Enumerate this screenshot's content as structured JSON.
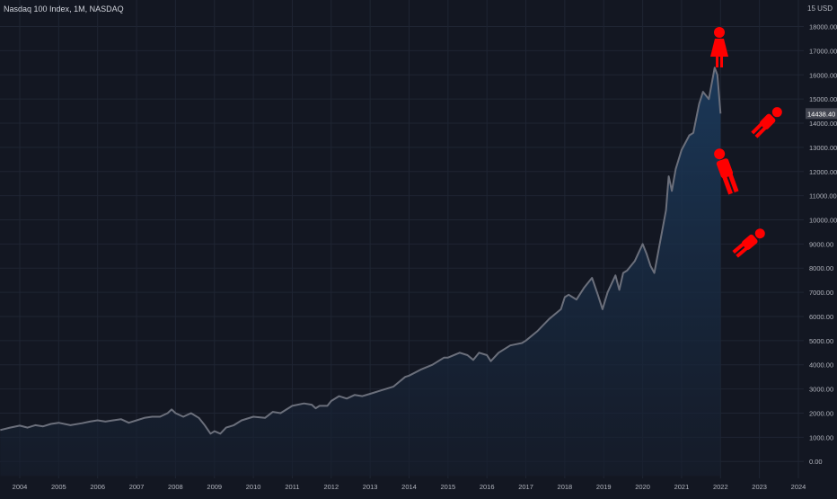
{
  "header": {
    "symbol": "Nasdaq 100 Index",
    "interval": "1M",
    "exchange": "NASDAQ",
    "currency": "USD",
    "top_tick_partial": "15"
  },
  "price_tag": "14438.40",
  "colors": {
    "background": "#131722",
    "grid": "#1f2533",
    "line": "#6b6f7b",
    "area_top": "#1b3a5c",
    "area_bottom": "#161e2d",
    "axis_text": "#b2b5be",
    "price_tag_bg": "#434651",
    "figures": "#ff0000"
  },
  "annotations": [
    {
      "icon": "woman-standing-icon"
    },
    {
      "icon": "man-standing-icon"
    },
    {
      "icon": "person-falling-icon"
    },
    {
      "icon": "person-falling-icon"
    }
  ],
  "chart_data": {
    "type": "area",
    "title": "Nasdaq 100 Index, 1M, NASDAQ",
    "x_tick_labels": [
      "2004",
      "2005",
      "2006",
      "2007",
      "2008",
      "2009",
      "2010",
      "2011",
      "2012",
      "2013",
      "2014",
      "2015",
      "2016",
      "2017",
      "2018",
      "2019",
      "2020",
      "2021",
      "2022",
      "2023",
      "2024"
    ],
    "y_tick_labels": [
      "0.00",
      "1000.00",
      "2000.00",
      "3000.00",
      "4000.00",
      "5000.00",
      "6000.00",
      "7000.00",
      "8000.00",
      "9000.00",
      "10000.00",
      "11000.00",
      "12000.00",
      "13000.00",
      "14000.00",
      "15000.00",
      "16000.00",
      "17000.00",
      "18000.00"
    ],
    "ylim": [
      -700,
      19100
    ],
    "xlim": [
      2003.5,
      2024.2
    ],
    "y_axis_position": "right",
    "grid": true,
    "series": [
      {
        "x": [
          2003.5,
          2003.75,
          2004.0,
          2004.2,
          2004.4,
          2004.6,
          2004.8,
          2005.0,
          2005.3,
          2005.6,
          2005.8,
          2006.0,
          2006.2,
          2006.4,
          2006.6,
          2006.8,
          2007.0,
          2007.2,
          2007.4,
          2007.6,
          2007.8,
          2007.9,
          2008.0,
          2008.2,
          2008.4,
          2008.6,
          2008.75,
          2008.9,
          2009.0,
          2009.15,
          2009.3,
          2009.5,
          2009.7,
          2010.0,
          2010.3,
          2010.5,
          2010.7,
          2011.0,
          2011.3,
          2011.5,
          2011.6,
          2011.7,
          2011.9,
          2012.0,
          2012.2,
          2012.4,
          2012.6,
          2012.8,
          2013.0,
          2013.3,
          2013.6,
          2013.9,
          2014.0,
          2014.3,
          2014.6,
          2014.9,
          2015.0,
          2015.3,
          2015.5,
          2015.65,
          2015.8,
          2016.0,
          2016.1,
          2016.3,
          2016.6,
          2016.9,
          2017.0,
          2017.3,
          2017.6,
          2017.9,
          2018.0,
          2018.1,
          2018.3,
          2018.5,
          2018.7,
          2018.85,
          2018.97,
          2019.1,
          2019.3,
          2019.4,
          2019.5,
          2019.6,
          2019.8,
          2020.0,
          2020.1,
          2020.2,
          2020.3,
          2020.45,
          2020.6,
          2020.67,
          2020.75,
          2020.85,
          2021.0,
          2021.2,
          2021.3,
          2021.45,
          2021.55,
          2021.7,
          2021.85,
          2021.92,
          2022.0
        ],
        "values": [
          1300,
          1400,
          1480,
          1400,
          1500,
          1450,
          1550,
          1600,
          1500,
          1580,
          1650,
          1700,
          1650,
          1700,
          1750,
          1600,
          1700,
          1800,
          1850,
          1850,
          2000,
          2150,
          2000,
          1850,
          2000,
          1800,
          1500,
          1150,
          1250,
          1150,
          1400,
          1500,
          1700,
          1850,
          1800,
          2050,
          2000,
          2300,
          2400,
          2350,
          2200,
          2300,
          2300,
          2500,
          2700,
          2600,
          2750,
          2700,
          2800,
          2950,
          3100,
          3500,
          3550,
          3800,
          4000,
          4300,
          4300,
          4500,
          4400,
          4200,
          4500,
          4400,
          4150,
          4500,
          4800,
          4900,
          5000,
          5400,
          5900,
          6300,
          6800,
          6900,
          6700,
          7200,
          7600,
          6900,
          6300,
          7000,
          7700,
          7100,
          7800,
          7900,
          8300,
          9000,
          8600,
          8100,
          7800,
          9100,
          10400,
          11800,
          11200,
          12100,
          12900,
          13500,
          13600,
          14800,
          15300,
          15000,
          16300,
          16000,
          14400
        ]
      }
    ]
  }
}
